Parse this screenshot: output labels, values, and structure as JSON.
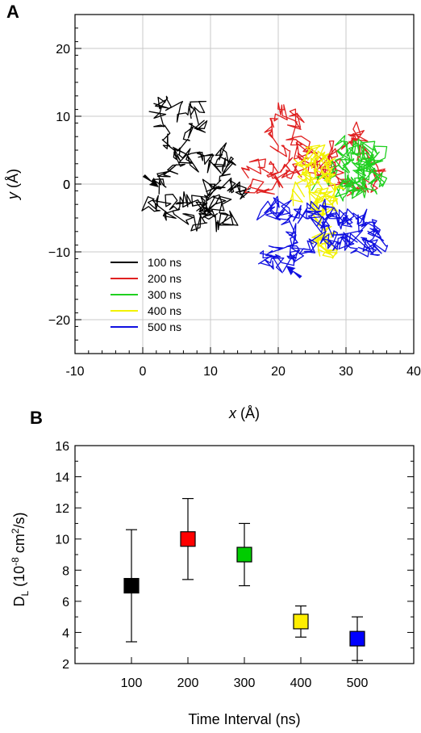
{
  "chart_data": [
    {
      "panel": "A",
      "type": "line",
      "xlabel": "x (Å)",
      "ylabel": "y (Å)",
      "xlim": [
        -10,
        40
      ],
      "ylim": [
        -25,
        25
      ],
      "xticks": [
        -10,
        0,
        10,
        20,
        30,
        40
      ],
      "yticks": [
        -20,
        -10,
        0,
        10,
        20
      ],
      "grid": true,
      "legend_position": "bottom-left",
      "series": [
        {
          "name": "100 ns",
          "color": "#000000",
          "center": [
            6,
            2
          ],
          "spread": [
            3.5,
            4.5
          ],
          "points": [
            [
              2,
              -1
            ],
            [
              3,
              1
            ],
            [
              5,
              3
            ],
            [
              4,
              6
            ],
            [
              3,
              8
            ],
            [
              2,
              11
            ],
            [
              4,
              12
            ],
            [
              6,
              10
            ],
            [
              8,
              12
            ],
            [
              9,
              9
            ],
            [
              7,
              7
            ],
            [
              5,
              5
            ],
            [
              7,
              3
            ],
            [
              9,
              4
            ],
            [
              11,
              2
            ],
            [
              12,
              5
            ],
            [
              13,
              3
            ],
            [
              11,
              0
            ],
            [
              9,
              -1
            ],
            [
              8,
              -3
            ],
            [
              10,
              -4
            ],
            [
              12,
              -2
            ],
            [
              13,
              -5
            ],
            [
              11,
              -6
            ],
            [
              9,
              -4
            ],
            [
              7,
              -2
            ],
            [
              5,
              -3
            ],
            [
              3,
              -2
            ],
            [
              1,
              -3
            ],
            [
              3,
              -4
            ],
            [
              6,
              -5
            ],
            [
              8,
              -6
            ],
            [
              10,
              -3
            ],
            [
              12,
              0
            ],
            [
              14,
              -1
            ],
            [
              15,
              -2
            ]
          ]
        },
        {
          "name": "200 ns",
          "color": "#e02020",
          "center": [
            26,
            4
          ],
          "spread": [
            5,
            4
          ],
          "points": [
            [
              15,
              2
            ],
            [
              17,
              3
            ],
            [
              19,
              2
            ],
            [
              21,
              3
            ],
            [
              20,
              6
            ],
            [
              19,
              9
            ],
            [
              21,
              11
            ],
            [
              23,
              10
            ],
            [
              22,
              8
            ],
            [
              24,
              6
            ],
            [
              23,
              4
            ],
            [
              25,
              5
            ],
            [
              27,
              3
            ],
            [
              29,
              2
            ],
            [
              28,
              5
            ],
            [
              30,
              6
            ],
            [
              31,
              8
            ],
            [
              32,
              6
            ],
            [
              33,
              4
            ],
            [
              35,
              2
            ],
            [
              34,
              0
            ],
            [
              32,
              -1
            ],
            [
              30,
              0
            ],
            [
              28,
              1
            ],
            [
              26,
              2
            ],
            [
              24,
              3
            ],
            [
              22,
              2
            ],
            [
              20,
              1
            ],
            [
              18,
              -1
            ],
            [
              16,
              0
            ]
          ]
        },
        {
          "name": "300 ns",
          "color": "#20d020",
          "center": [
            31,
            2
          ],
          "spread": [
            3,
            3
          ],
          "points": [
            [
              26,
              0
            ],
            [
              28,
              2
            ],
            [
              30,
              4
            ],
            [
              29,
              6
            ],
            [
              31,
              5
            ],
            [
              33,
              6
            ],
            [
              34,
              4
            ],
            [
              32,
              2
            ],
            [
              34,
              1
            ],
            [
              35,
              0
            ],
            [
              33,
              -1
            ],
            [
              31,
              0
            ],
            [
              29,
              1
            ],
            [
              30,
              3
            ],
            [
              32,
              4
            ],
            [
              33,
              2
            ],
            [
              31,
              -1
            ],
            [
              29,
              -2
            ],
            [
              30,
              0
            ],
            [
              32,
              1
            ],
            [
              34,
              3
            ],
            [
              35,
              5
            ],
            [
              33,
              3
            ],
            [
              31,
              2
            ]
          ]
        },
        {
          "name": "400 ns",
          "color": "#f2f200",
          "center": [
            26,
            1
          ],
          "spread": [
            3,
            5
          ],
          "points": [
            [
              22,
              -2
            ],
            [
              24,
              0
            ],
            [
              23,
              3
            ],
            [
              25,
              5
            ],
            [
              27,
              4
            ],
            [
              26,
              2
            ],
            [
              28,
              1
            ],
            [
              27,
              -1
            ],
            [
              25,
              -2
            ],
            [
              26,
              -4
            ],
            [
              28,
              -3
            ],
            [
              29,
              -1
            ],
            [
              28,
              2
            ],
            [
              26,
              4
            ],
            [
              24,
              2
            ],
            [
              25,
              0
            ],
            [
              27,
              -2
            ],
            [
              26,
              -5
            ],
            [
              28,
              -7
            ],
            [
              27,
              -9
            ],
            [
              26,
              -8
            ],
            [
              27,
              -10
            ],
            [
              28,
              -11
            ]
          ]
        },
        {
          "name": "500 ns",
          "color": "#1010e0",
          "center": [
            26,
            -6
          ],
          "spread": [
            5,
            3
          ],
          "points": [
            [
              22,
              -12
            ],
            [
              21,
              -10
            ],
            [
              19,
              -9
            ],
            [
              18,
              -11
            ],
            [
              20,
              -12
            ],
            [
              22,
              -10
            ],
            [
              23,
              -8
            ],
            [
              22,
              -6
            ],
            [
              20,
              -5
            ],
            [
              18,
              -4
            ],
            [
              20,
              -3
            ],
            [
              22,
              -4
            ],
            [
              24,
              -5
            ],
            [
              26,
              -6
            ],
            [
              25,
              -4
            ],
            [
              27,
              -3
            ],
            [
              29,
              -5
            ],
            [
              31,
              -4
            ],
            [
              33,
              -6
            ],
            [
              34,
              -8
            ],
            [
              33,
              -9
            ],
            [
              31,
              -8
            ],
            [
              29,
              -9
            ],
            [
              27,
              -7
            ],
            [
              28,
              -5
            ],
            [
              30,
              -6
            ],
            [
              32,
              -5
            ],
            [
              34,
              -7
            ],
            [
              35,
              -9
            ],
            [
              33,
              -10
            ],
            [
              30,
              -8
            ],
            [
              28,
              -9
            ],
            [
              26,
              -8
            ],
            [
              24,
              -10
            ],
            [
              22,
              -11
            ]
          ]
        }
      ],
      "annotations": [
        {
          "type": "arrow",
          "color": "#000000",
          "at": [
            2,
            0
          ],
          "direction": "down-right"
        },
        {
          "type": "arrow",
          "color": "#1010e0",
          "at": [
            21.5,
            -12.5
          ],
          "direction": "up-left"
        }
      ]
    },
    {
      "panel": "B",
      "type": "scatter",
      "xlabel": "Time Interval (ns)",
      "ylabel": "D",
      "ylabel_sub": "L",
      "ylabel_unit": " (10",
      "ylabel_exp": "-8",
      "ylabel_unit2": " cm",
      "ylabel_exp2": "2",
      "ylabel_unit3": "/s)",
      "xlim": [
        0,
        600
      ],
      "ylim": [
        2,
        16
      ],
      "categories": [
        "100",
        "200",
        "300",
        "400",
        "500"
      ],
      "x": [
        100,
        200,
        300,
        400,
        500
      ],
      "values": [
        7.0,
        10.0,
        9.0,
        4.7,
        3.6
      ],
      "errors": [
        3.6,
        2.6,
        2.0,
        1.0,
        1.4
      ],
      "colors": [
        "#000000",
        "#ff0000",
        "#00cc00",
        "#ffee00",
        "#0000ff"
      ],
      "yticks": [
        2,
        4,
        6,
        8,
        10,
        12,
        14,
        16
      ],
      "grid": false
    }
  ],
  "labels": {
    "panel_a": "A",
    "panel_b": "B"
  }
}
